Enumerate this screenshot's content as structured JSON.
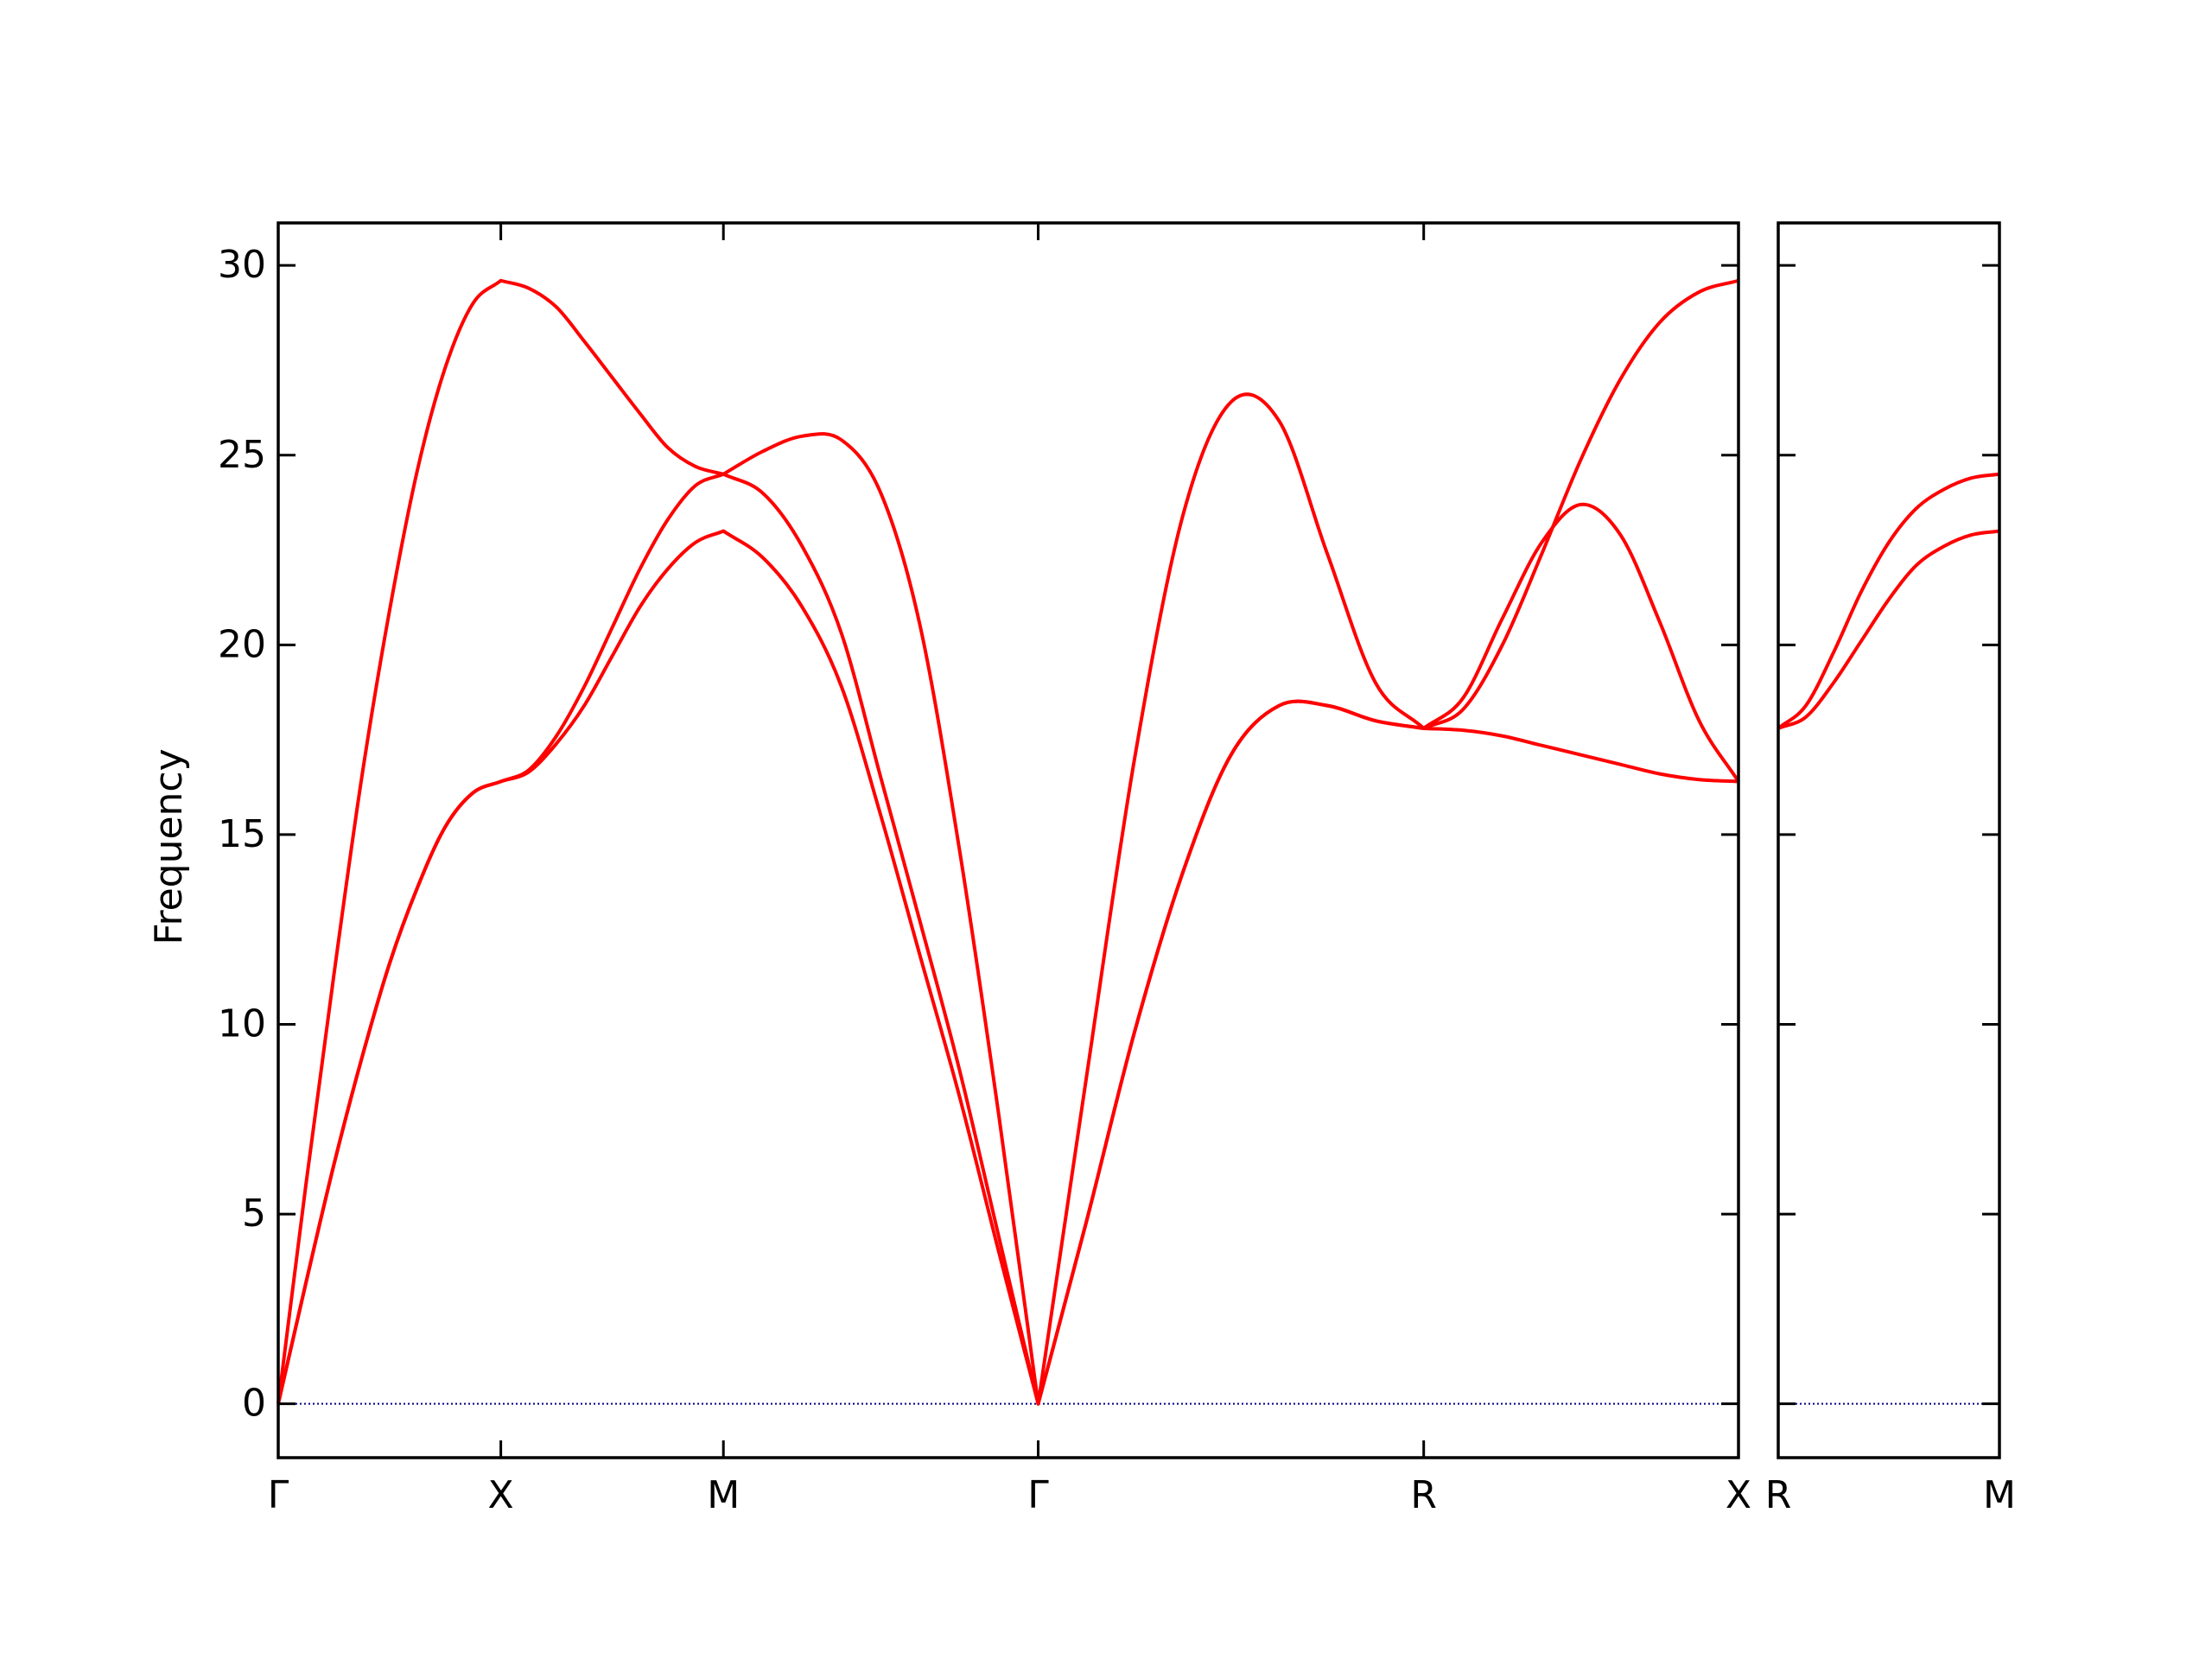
{
  "chart_data": [
    {
      "type": "line",
      "ylabel": "Frequency",
      "xlim": [
        0,
        3.2802
      ],
      "ylim": [
        -1.42,
        31.12
      ],
      "xticks": [
        {
          "value": 0,
          "label": "Γ"
        },
        {
          "value": 0.5,
          "label": "X"
        },
        {
          "value": 1.0,
          "label": "M"
        },
        {
          "value": 1.7071,
          "label": "Γ"
        },
        {
          "value": 2.5731,
          "label": "R"
        },
        {
          "value": 3.2802,
          "label": "X"
        }
      ],
      "yticks": [
        0,
        5,
        10,
        15,
        20,
        25,
        30
      ],
      "ytick_labels": true,
      "hlines": [
        {
          "value": 0,
          "color": "#00008b"
        }
      ],
      "x": [
        0,
        0.0625,
        0.125,
        0.1875,
        0.25,
        0.3125,
        0.375,
        0.4375,
        0.5,
        0.5625,
        0.625,
        0.6875,
        0.75,
        0.8125,
        0.875,
        0.9375,
        1.0,
        1.0884,
        1.1768,
        1.2652,
        1.3536,
        1.4419,
        1.5303,
        1.6187,
        1.7071,
        1.8154,
        1.9236,
        2.0319,
        2.1401,
        2.2484,
        2.3566,
        2.4649,
        2.5731,
        2.6615,
        2.7499,
        2.8383,
        2.9267,
        3.015,
        3.1034,
        3.1918,
        3.2802
      ],
      "series": [
        {
          "color": "#ff0000",
          "values": [
            0,
            3.2,
            6.3,
            9.1,
            11.6,
            13.6,
            15.2,
            16.1,
            16.4,
            16.65,
            17.4,
            18.4,
            19.7,
            21.0,
            22.0,
            22.7,
            23.0,
            22.3,
            21.0,
            18.9,
            15.5,
            11.8,
            8.1,
            4.0,
            0,
            4.8,
            9.8,
            14.0,
            17.1,
            18.4,
            18.4,
            18.0,
            17.8,
            17.75,
            17.6,
            17.35,
            17.1,
            16.85,
            16.6,
            16.45,
            16.4
          ]
        },
        {
          "color": "#ff0000",
          "values": [
            0,
            3.2,
            6.3,
            9.1,
            11.6,
            13.6,
            15.2,
            16.1,
            16.4,
            16.7,
            17.6,
            18.9,
            20.45,
            22.0,
            23.3,
            24.2,
            24.5,
            24.0,
            22.6,
            20.3,
            16.5,
            12.7,
            8.8,
            4.4,
            0,
            4.8,
            9.8,
            14.0,
            17.1,
            18.4,
            18.4,
            18.0,
            17.8,
            18.6,
            20.7,
            22.7,
            23.7,
            22.9,
            20.6,
            18.0,
            16.4
          ]
        },
        {
          "color": "#ff0000",
          "values": [
            0,
            5.8,
            11.3,
            16.5,
            20.9,
            24.6,
            27.3,
            29.0,
            29.6,
            29.4,
            28.9,
            28.0,
            27.05,
            26.1,
            25.2,
            24.7,
            24.5,
            25.1,
            25.5,
            25.4,
            24.0,
            20.5,
            14.6,
            7.6,
            0,
            8.6,
            17.0,
            23.4,
            26.4,
            25.9,
            22.4,
            19.0,
            17.8,
            18.3,
            20.0,
            22.4,
            24.9,
            27.0,
            28.5,
            29.3,
            29.6
          ]
        }
      ]
    },
    {
      "type": "line",
      "xlim": [
        0,
        0.5
      ],
      "ylim": [
        -1.42,
        31.12
      ],
      "xticks": [
        {
          "value": 0,
          "label": "R"
        },
        {
          "value": 0.5,
          "label": "M"
        }
      ],
      "yticks": [
        0,
        5,
        10,
        15,
        20,
        25,
        30
      ],
      "ytick_labels": false,
      "hlines": [
        {
          "value": 0,
          "color": "#00008b"
        }
      ],
      "x": [
        0,
        0.0625,
        0.125,
        0.1875,
        0.25,
        0.3125,
        0.375,
        0.4375,
        0.5
      ],
      "series": [
        {
          "color": "#ff0000",
          "values": [
            17.8,
            18.4,
            19.8,
            21.4,
            22.7,
            23.6,
            24.1,
            24.4,
            24.5
          ]
        },
        {
          "color": "#ff0000",
          "values": [
            17.8,
            18.1,
            19.0,
            20.1,
            21.2,
            22.1,
            22.6,
            22.9,
            23.0
          ]
        }
      ]
    }
  ]
}
